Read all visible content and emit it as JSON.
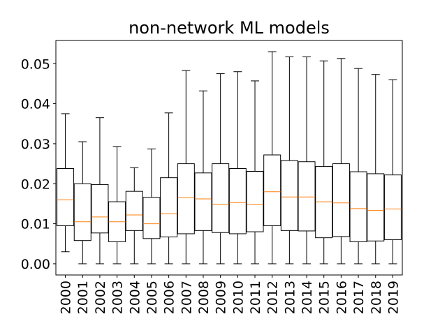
{
  "chart_data": {
    "type": "boxplot",
    "title": "non-network ML models",
    "xlabel": "",
    "ylabel": "",
    "ylim": [
      -0.0028,
      0.0558
    ],
    "yticks": [
      0.0,
      0.01,
      0.02,
      0.03,
      0.04,
      0.05
    ],
    "ytick_labels": [
      "0.00",
      "0.01",
      "0.02",
      "0.03",
      "0.04",
      "0.05"
    ],
    "grid": false,
    "legend": "none",
    "box_color": "#000000",
    "median_color": "#ff7f0e",
    "categories": [
      "2000",
      "2001",
      "2002",
      "2003",
      "2004",
      "2005",
      "2006",
      "2007",
      "2008",
      "2009",
      "2010",
      "2011",
      "2012",
      "2013",
      "2014",
      "2015",
      "2016",
      "2017",
      "2018",
      "2019"
    ],
    "boxes": [
      {
        "whisker_low": 0.003,
        "q1": 0.0095,
        "median": 0.016,
        "q3": 0.0238,
        "whisker_high": 0.0375
      },
      {
        "whisker_low": 0.0,
        "q1": 0.0058,
        "median": 0.0105,
        "q3": 0.02,
        "whisker_high": 0.0305
      },
      {
        "whisker_low": 0.0,
        "q1": 0.0077,
        "median": 0.0117,
        "q3": 0.0198,
        "whisker_high": 0.0365
      },
      {
        "whisker_low": 0.0,
        "q1": 0.0055,
        "median": 0.0105,
        "q3": 0.0155,
        "whisker_high": 0.0293
      },
      {
        "whisker_low": 0.0,
        "q1": 0.0083,
        "median": 0.0122,
        "q3": 0.0181,
        "whisker_high": 0.024
      },
      {
        "whisker_low": 0.0,
        "q1": 0.0063,
        "median": 0.01,
        "q3": 0.0166,
        "whisker_high": 0.0287
      },
      {
        "whisker_low": 0.0,
        "q1": 0.0067,
        "median": 0.0125,
        "q3": 0.0215,
        "whisker_high": 0.0377
      },
      {
        "whisker_low": 0.0,
        "q1": 0.0075,
        "median": 0.0165,
        "q3": 0.025,
        "whisker_high": 0.0483
      },
      {
        "whisker_low": 0.0,
        "q1": 0.0083,
        "median": 0.0162,
        "q3": 0.0227,
        "whisker_high": 0.0432
      },
      {
        "whisker_low": 0.0,
        "q1": 0.0078,
        "median": 0.0148,
        "q3": 0.025,
        "whisker_high": 0.0475
      },
      {
        "whisker_low": 0.0,
        "q1": 0.0075,
        "median": 0.0153,
        "q3": 0.0238,
        "whisker_high": 0.048
      },
      {
        "whisker_low": 0.0,
        "q1": 0.008,
        "median": 0.0148,
        "q3": 0.0231,
        "whisker_high": 0.0457
      },
      {
        "whisker_low": 0.0,
        "q1": 0.0095,
        "median": 0.018,
        "q3": 0.0272,
        "whisker_high": 0.053
      },
      {
        "whisker_low": 0.0,
        "q1": 0.0083,
        "median": 0.0167,
        "q3": 0.0258,
        "whisker_high": 0.0517
      },
      {
        "whisker_low": 0.0,
        "q1": 0.0082,
        "median": 0.0167,
        "q3": 0.0255,
        "whisker_high": 0.0517
      },
      {
        "whisker_low": 0.0,
        "q1": 0.0065,
        "median": 0.0155,
        "q3": 0.0243,
        "whisker_high": 0.0507
      },
      {
        "whisker_low": 0.0,
        "q1": 0.0068,
        "median": 0.0152,
        "q3": 0.025,
        "whisker_high": 0.0513
      },
      {
        "whisker_low": 0.0,
        "q1": 0.0055,
        "median": 0.0138,
        "q3": 0.023,
        "whisker_high": 0.0488
      },
      {
        "whisker_low": 0.0,
        "q1": 0.0057,
        "median": 0.0133,
        "q3": 0.0225,
        "whisker_high": 0.0473
      },
      {
        "whisker_low": 0.0,
        "q1": 0.006,
        "median": 0.0137,
        "q3": 0.0222,
        "whisker_high": 0.046
      }
    ]
  }
}
